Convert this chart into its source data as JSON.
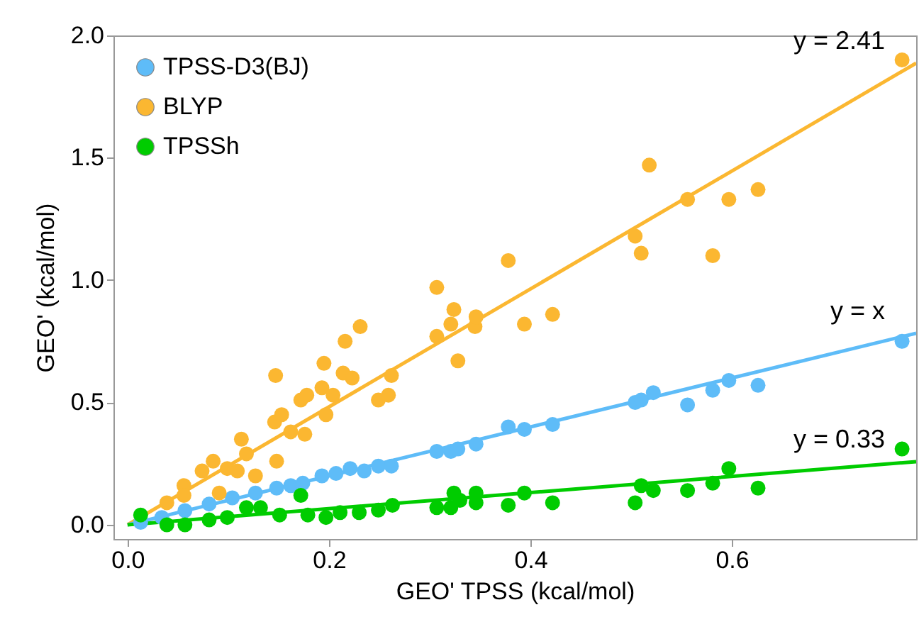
{
  "chart_data": {
    "type": "scatter",
    "xlabel": "GEO' TPSS (kcal/mol)",
    "ylabel": "GEO' (kcal/mol)",
    "xlim": [
      -0.014,
      0.783
    ],
    "ylim": [
      -0.058,
      2.0
    ],
    "xticks": [
      {
        "value": 0,
        "label": "0.0"
      },
      {
        "value": 0.2,
        "label": "0.2"
      },
      {
        "value": 0.4,
        "label": "0.4"
      },
      {
        "value": 0.6,
        "label": "0.6"
      }
    ],
    "yticks": [
      {
        "value": 0,
        "label": "0.0"
      },
      {
        "value": 0.5,
        "label": "0.5"
      },
      {
        "value": 1,
        "label": "1.0"
      },
      {
        "value": 1.5,
        "label": "1.5"
      },
      {
        "value": 2,
        "label": "2.0"
      }
    ],
    "grid": false,
    "legend": "top left",
    "series": [
      {
        "name": "TPSS-D3(BJ)",
        "marker": "circle",
        "color": "#5ebcf8",
        "x": [
          0.013,
          0.034,
          0.057,
          0.081,
          0.104,
          0.127,
          0.148,
          0.162,
          0.174,
          0.193,
          0.207,
          0.221,
          0.235,
          0.249,
          0.262,
          0.307,
          0.321,
          0.328,
          0.346,
          0.378,
          0.394,
          0.422,
          0.504,
          0.51,
          0.522,
          0.556,
          0.581,
          0.597,
          0.626,
          0.769
        ],
        "values": [
          0.01,
          0.03,
          0.058,
          0.085,
          0.11,
          0.13,
          0.15,
          0.16,
          0.17,
          0.2,
          0.21,
          0.23,
          0.22,
          0.24,
          0.24,
          0.3,
          0.3,
          0.31,
          0.33,
          0.4,
          0.39,
          0.41,
          0.5,
          0.51,
          0.54,
          0.49,
          0.55,
          0.59,
          0.57,
          0.75
        ]
      },
      {
        "name": "BLYP",
        "marker": "circle",
        "color": "#fbb731",
        "x": [
          0.039,
          0.056,
          0.056,
          0.074,
          0.085,
          0.091,
          0.099,
          0.109,
          0.113,
          0.118,
          0.127,
          0.148,
          0.147,
          0.146,
          0.153,
          0.162,
          0.172,
          0.176,
          0.178,
          0.195,
          0.193,
          0.197,
          0.204,
          0.214,
          0.223,
          0.216,
          0.231,
          0.249,
          0.259,
          0.262,
          0.307,
          0.307,
          0.321,
          0.324,
          0.328,
          0.345,
          0.346,
          0.378,
          0.394,
          0.422,
          0.504,
          0.51,
          0.518,
          0.556,
          0.581,
          0.597,
          0.626,
          0.769
        ],
        "values": [
          0.09,
          0.16,
          0.12,
          0.22,
          0.26,
          0.13,
          0.23,
          0.22,
          0.35,
          0.29,
          0.2,
          0.26,
          0.61,
          0.42,
          0.45,
          0.38,
          0.51,
          0.37,
          0.53,
          0.66,
          0.56,
          0.45,
          0.53,
          0.62,
          0.6,
          0.75,
          0.81,
          0.51,
          0.53,
          0.61,
          0.77,
          0.97,
          0.82,
          0.88,
          0.67,
          0.81,
          0.85,
          1.08,
          0.82,
          0.86,
          1.18,
          1.11,
          1.47,
          1.33,
          1.1,
          1.33,
          1.37,
          1.9
        ]
      },
      {
        "name": "TPSSh",
        "marker": "circle",
        "color": "#00cc00",
        "x": [
          0.013,
          0.039,
          0.057,
          0.081,
          0.099,
          0.118,
          0.132,
          0.151,
          0.172,
          0.179,
          0.197,
          0.211,
          0.23,
          0.249,
          0.263,
          0.307,
          0.321,
          0.324,
          0.33,
          0.346,
          0.346,
          0.378,
          0.394,
          0.422,
          0.504,
          0.51,
          0.522,
          0.556,
          0.581,
          0.597,
          0.626,
          0.769
        ],
        "values": [
          0.04,
          0.0,
          0.0,
          0.02,
          0.03,
          0.07,
          0.07,
          0.04,
          0.12,
          0.04,
          0.03,
          0.05,
          0.05,
          0.06,
          0.08,
          0.07,
          0.07,
          0.13,
          0.1,
          0.13,
          0.09,
          0.08,
          0.13,
          0.09,
          0.09,
          0.16,
          0.14,
          0.14,
          0.17,
          0.23,
          0.15,
          0.31
        ]
      },
      {
        "type": "line",
        "name": "y = 2.41",
        "color": "#fbb731",
        "x": [
          0,
          0.783
        ],
        "values": [
          0,
          1.887
        ]
      },
      {
        "type": "line",
        "name": "y = x",
        "color": "#5ebcf8",
        "x": [
          0,
          0.783
        ],
        "values": [
          0,
          0.783
        ]
      },
      {
        "type": "line",
        "name": "y = 0.33",
        "color": "#00cc00",
        "x": [
          0,
          0.783
        ],
        "values": [
          0,
          0.258
        ]
      }
    ]
  }
}
